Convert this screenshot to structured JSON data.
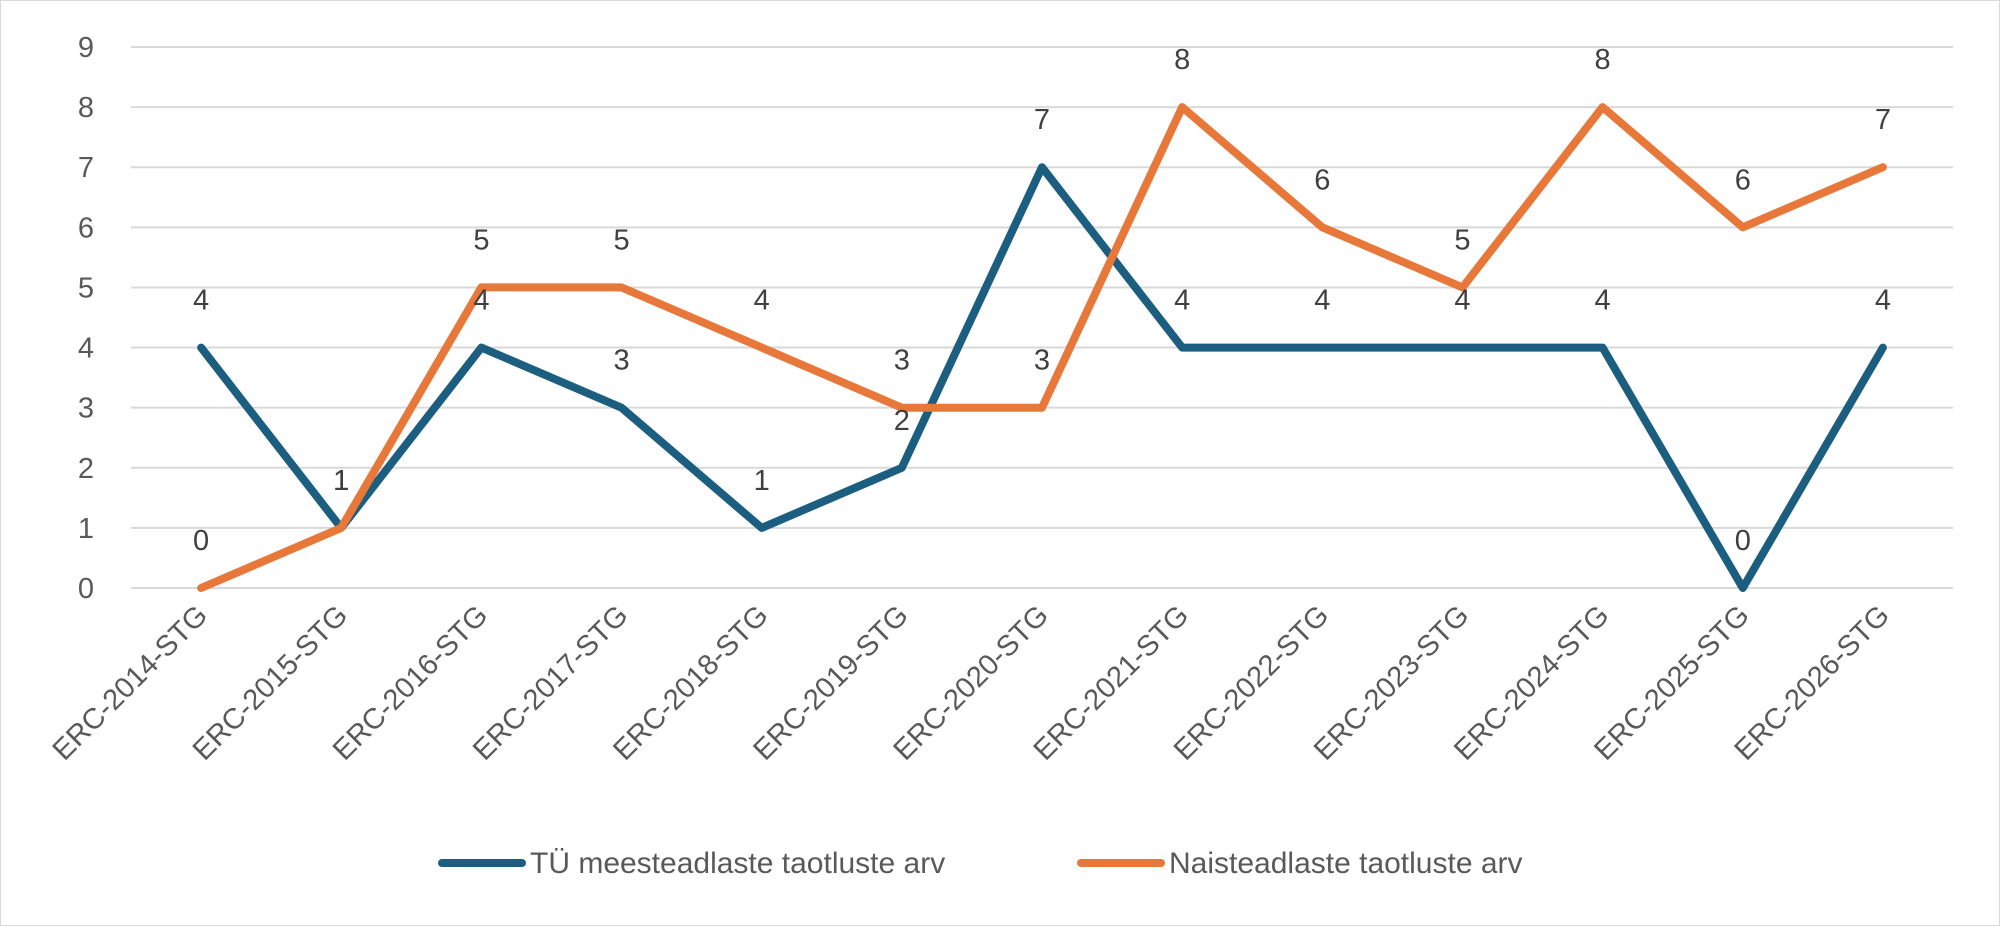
{
  "chart_data": {
    "type": "line",
    "title": "",
    "xlabel": "",
    "ylabel": "",
    "ylim": [
      0,
      9
    ],
    "yticks": [
      0,
      1,
      2,
      3,
      4,
      5,
      6,
      7,
      8,
      9
    ],
    "grid": true,
    "legend_position": "bottom",
    "categories": [
      "ERC-2014-STG",
      "ERC-2015-STG",
      "ERC-2016-STG",
      "ERC-2017-STG",
      "ERC-2018-STG",
      "ERC-2019-STG",
      "ERC-2020-STG",
      "ERC-2021-STG",
      "ERC-2022-STG",
      "ERC-2023-STG",
      "ERC-2024-STG",
      "ERC-2025-STG",
      "ERC-2026-STG"
    ],
    "series": [
      {
        "name": "TÜ meesteadlaste taotluste arv",
        "color": "#1b5e80",
        "values": [
          4,
          1,
          4,
          3,
          1,
          2,
          7,
          4,
          4,
          4,
          4,
          0,
          4
        ]
      },
      {
        "name": "Naisteadlaste taotluste arv",
        "color": "#e8773a",
        "values": [
          0,
          1,
          5,
          5,
          4,
          3,
          3,
          8,
          6,
          5,
          8,
          6,
          7
        ]
      }
    ]
  }
}
